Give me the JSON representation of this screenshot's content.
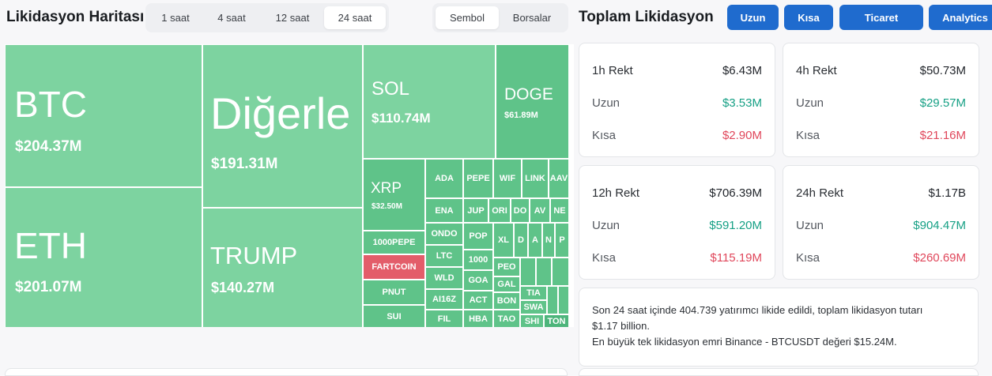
{
  "heatmap": {
    "title": "Likidasyon Haritası",
    "time_tabs": [
      {
        "label": "1 saat",
        "active": false
      },
      {
        "label": "4 saat",
        "active": false
      },
      {
        "label": "12 saat",
        "active": false
      },
      {
        "label": "24 saat",
        "active": true
      }
    ],
    "view_tabs": [
      {
        "label": "Sembol",
        "active": true
      },
      {
        "label": "Borsalar",
        "active": false
      }
    ],
    "tiles": {
      "btc": {
        "symbol": "BTC",
        "value": "$204.37M"
      },
      "eth": {
        "symbol": "ETH",
        "value": "$201.07M"
      },
      "others": {
        "symbol": "Diğerle",
        "value": "$191.31M"
      },
      "trump": {
        "symbol": "TRUMP",
        "value": "$140.27M"
      },
      "sol": {
        "symbol": "SOL",
        "value": "$110.74M"
      },
      "doge": {
        "symbol": "DOGE",
        "value": "$61.89M"
      },
      "xrp": {
        "symbol": "XRP",
        "value": "$32.50M"
      },
      "small": [
        "1000PEPE",
        "FARTCOIN",
        "PNUT",
        "SUI",
        "ADA",
        "PEPE",
        "WIF",
        "LINK",
        "AAV",
        "ENA",
        "JUP",
        "ORI",
        "DO",
        "AV",
        "NE",
        "ONDO",
        "POP",
        "XL",
        "D",
        "A",
        "N",
        "P",
        "LTC",
        "1000",
        "WLD",
        "GOA",
        "PEO",
        "GAL",
        "AI16Z",
        "ACT",
        "BON",
        "TIA",
        "SWA",
        "FIL",
        "HBA",
        "TAO",
        "SHI",
        "TON"
      ]
    },
    "colors": {
      "green": "#7dd3a0",
      "green_dark": "#5fc389",
      "red": "#e35d6a"
    }
  },
  "total": {
    "title": "Toplam Likidasyon",
    "buttons": [
      "Uzun",
      "Kısa",
      "Ticaret",
      "Analytics"
    ],
    "accent": "#1f6bce",
    "cards": [
      {
        "label": "1h Rekt",
        "total": "$6.43M",
        "long_label": "Uzun",
        "long": "$3.53M",
        "short_label": "Kısa",
        "short": "$2.90M"
      },
      {
        "label": "4h Rekt",
        "total": "$50.73M",
        "long_label": "Uzun",
        "long": "$29.57M",
        "short_label": "Kısa",
        "short": "$21.16M"
      },
      {
        "label": "12h Rekt",
        "total": "$706.39M",
        "long_label": "Uzun",
        "long": "$591.20M",
        "short_label": "Kısa",
        "short": "$115.19M"
      },
      {
        "label": "24h Rekt",
        "total": "$1.17B",
        "long_label": "Uzun",
        "long": "$904.47M",
        "short_label": "Kısa",
        "short": "$260.69M"
      }
    ],
    "summary_line1": "Son 24 saat içinde 404.739 yatırımcı likide edildi, toplam likidasyon tutarı",
    "summary_line2": "$1.17 billion.",
    "summary_line3": "En büyük tek likidasyon emri Binance - BTCUSDT değeri $15.24M."
  }
}
